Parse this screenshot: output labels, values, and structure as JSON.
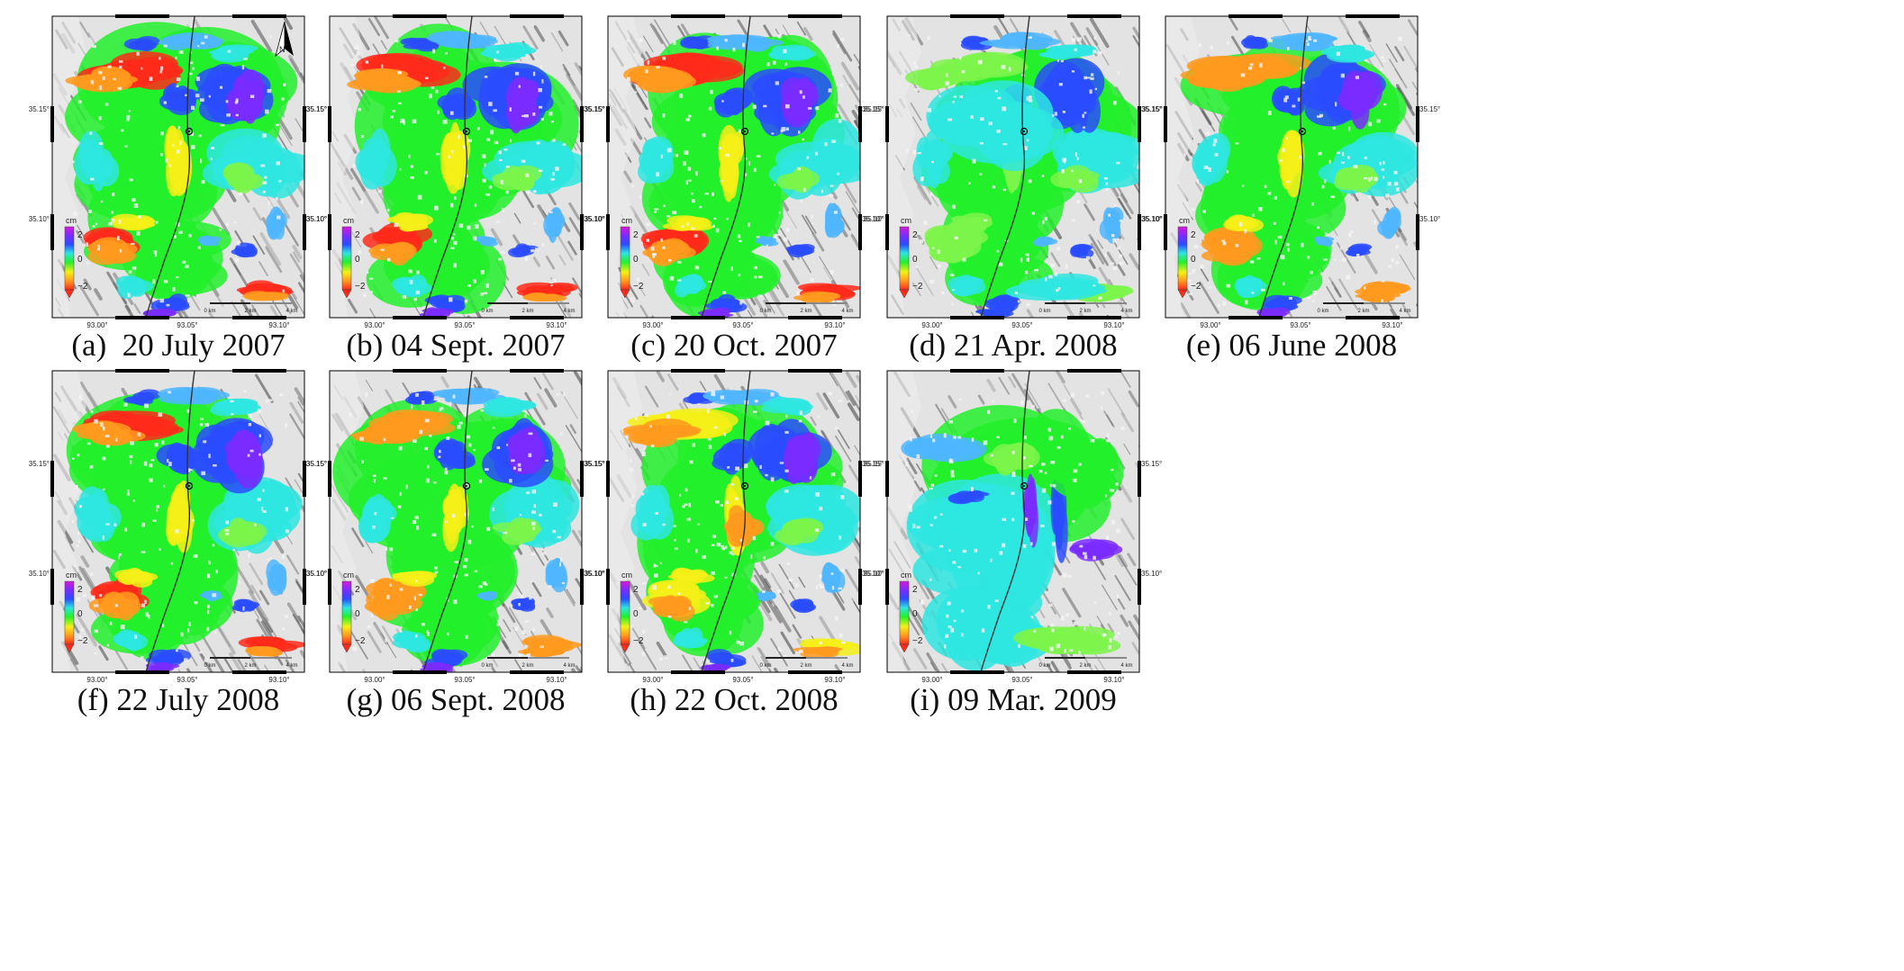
{
  "figure": {
    "panels": [
      {
        "id": "a",
        "caption": "(a)  20 July 2007",
        "show_north": true,
        "variant": "summer"
      },
      {
        "id": "b",
        "caption": "(b) 04 Sept. 2007",
        "show_north": false,
        "variant": "summer"
      },
      {
        "id": "c",
        "caption": "(c) 20 Oct. 2007",
        "show_north": false,
        "variant": "summer"
      },
      {
        "id": "d",
        "caption": "(d) 21 Apr. 2008",
        "show_north": false,
        "variant": "spring"
      },
      {
        "id": "e",
        "caption": "(e) 06 June 2008",
        "show_north": false,
        "variant": "summer-light"
      },
      {
        "id": "f",
        "caption": "(f) 22 July 2008",
        "show_north": false,
        "variant": "summer"
      },
      {
        "id": "g",
        "caption": "(g) 06 Sept. 2008",
        "show_north": false,
        "variant": "summer-light"
      },
      {
        "id": "h",
        "caption": "(h) 22 Oct. 2008",
        "show_north": false,
        "variant": "autumn"
      },
      {
        "id": "i",
        "caption": "(i) 09 Mar. 2009",
        "show_north": false,
        "variant": "winter"
      }
    ],
    "map_labels": {
      "lat_ticks": [
        "35.15°",
        "35.10°"
      ],
      "lon_ticks": [
        "93.00°",
        "93.05°",
        "93.10°"
      ],
      "colorbar_unit": "cm",
      "colorbar_ticks": [
        "2",
        "0",
        "−2"
      ],
      "scale_labels": [
        "0 km",
        "2 km",
        "4 km"
      ],
      "north_label": "N"
    },
    "colors": {
      "red": "#ff2a1a",
      "orange": "#ff9a1e",
      "yellow": "#f4f018",
      "green": "#22f02a",
      "lightgreen": "#7cf54a",
      "cyan": "#2ee6e0",
      "lightblue": "#4fb6ff",
      "blue": "#2a4cff",
      "violet": "#7a2cff",
      "magenta": "#e22cf0"
    }
  }
}
